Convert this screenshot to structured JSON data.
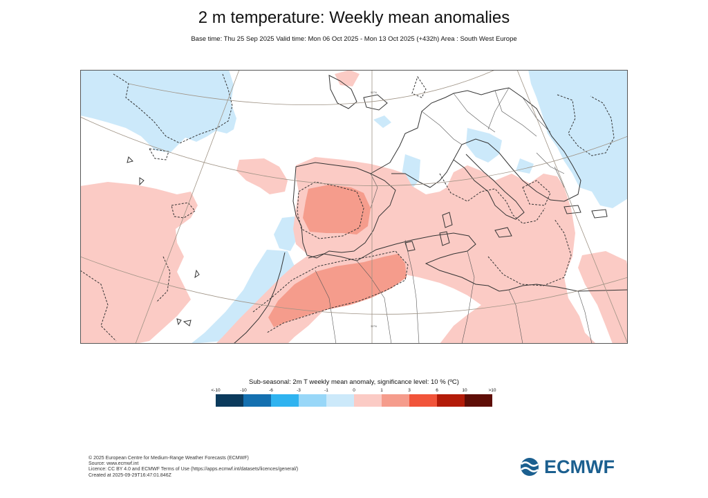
{
  "header": {
    "title": "2 m temperature: Weekly mean anomalies",
    "subtitle": "Base time: Thu 25 Sep 2025 Valid time: Mon 06 Oct 2025 - Mon 13 Oct 2025 (+432h) Area : South West Europe"
  },
  "map": {
    "region": "South West Europe",
    "latitude_labels": [
      "50°N",
      "30°N"
    ],
    "colors": {
      "ocean_land_background": "#ffffff",
      "border": "#555555",
      "graticule": "#9e9284",
      "coastline": "#333333",
      "significance_contour": "#333333"
    }
  },
  "legend": {
    "title": "Sub-seasonal: 2m T weekly mean anomaly, significance level: 10 % (ºC)",
    "labels": [
      "<-10",
      "-10",
      "-6",
      "-3",
      "-1",
      "0",
      "1",
      "3",
      "6",
      "10",
      ">10"
    ],
    "colors": [
      "#0b3a5c",
      "#1470b0",
      "#2fb3f0",
      "#98d7f8",
      "#cce9fa",
      "#fbcbc5",
      "#f59c8c",
      "#f1543a",
      "#b31b08",
      "#5e0d06"
    ]
  },
  "footer": {
    "copyright": "© 2025 European Centre for Medium-Range Weather Forecasts (ECMWF)",
    "source": "Source: www.ecmwf.int",
    "licence": "Licence: CC BY 4.0 and ECMWF Terms of Use (https://apps.ecmwf.int/datasets/licences/general/)",
    "created": "Created at 2025-09-29T16:47:01.846Z"
  },
  "logo": {
    "text": "ECMWF",
    "icon": "ecmwf-swirl-icon",
    "color": "#1b5f8f"
  }
}
